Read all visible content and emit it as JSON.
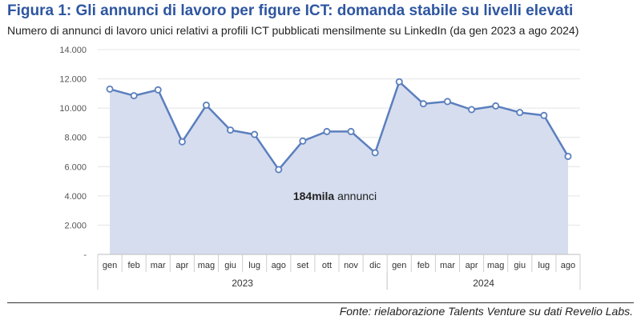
{
  "title": "Figura 1: Gli annunci di lavoro per figure ICT: domanda stabile su livelli elevati",
  "subtitle": "Numero di annunci di lavoro unici relativi a profili ICT pubblicati mensilmente su LinkedIn (da gen 2023 a ago 2024)",
  "source": "Fonte: rielaborazione Talents Venture su dati Revelio Labs.",
  "colors": {
    "title": "#2e56a0",
    "line": "#5b7fbe",
    "area": "#d6ddee",
    "grid": "#e4e4e4"
  },
  "chart_data": {
    "type": "area",
    "categories": [
      "gen",
      "feb",
      "mar",
      "apr",
      "mag",
      "giu",
      "lug",
      "ago",
      "set",
      "ott",
      "nov",
      "dic",
      "gen",
      "feb",
      "mar",
      "apr",
      "mag",
      "giu",
      "lug",
      "ago"
    ],
    "groups": [
      {
        "label": "2023",
        "count": 12
      },
      {
        "label": "2024",
        "count": 8
      }
    ],
    "series": [
      {
        "values": [
          11300,
          10850,
          11250,
          7700,
          10200,
          8500,
          8200,
          5800,
          7750,
          8400,
          8400,
          6950,
          11800,
          10300,
          10450,
          9900,
          10150,
          9700,
          9500,
          6700
        ]
      }
    ],
    "yticks": [
      "14.000",
      "12.000",
      "10.000",
      "8.000",
      "6.000",
      "4.000",
      "2.000",
      "-"
    ],
    "ylim": [
      0,
      14000
    ],
    "grid": true,
    "markers": "hollow-circle",
    "annotation": {
      "bold": "184mila",
      "text": " annunci"
    }
  }
}
